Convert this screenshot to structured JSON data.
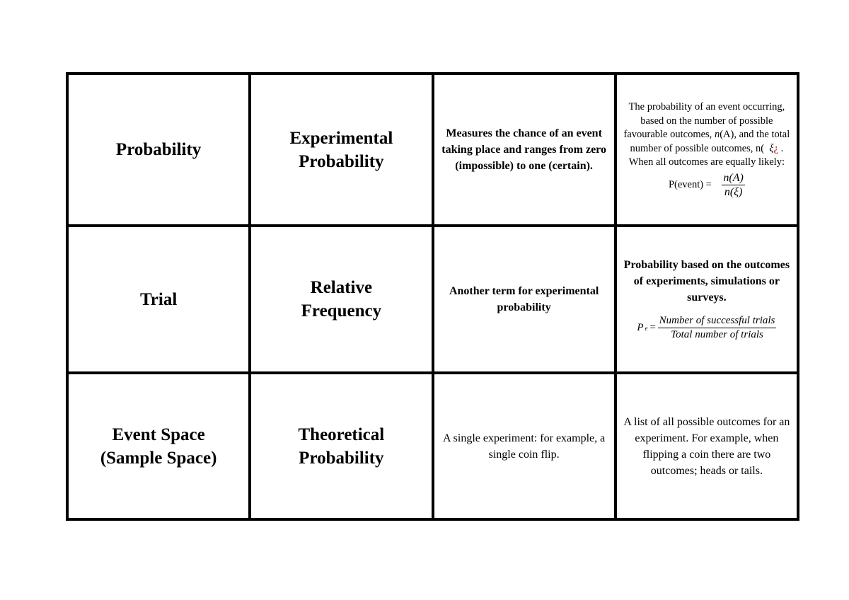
{
  "rows": [
    {
      "c1": "Probability",
      "c2a": "Experimental",
      "c2b": "Probability",
      "c3": "Measures the chance of an event taking place and ranges from zero (impossible) to one (certain).",
      "c4": {
        "line1": "The probability of an event occurring, based on the number of possible favourable outcomes,",
        "nA": "n",
        "nA_rest": "(A), and the total number of possible outcomes, n(",
        "xi": "ξ",
        "glitch": "¿",
        "dot": " .",
        "line2": "When all outcomes are equally likely:",
        "lhs": "P(event) = ",
        "num": "n(A)",
        "den": "n(ξ)"
      }
    },
    {
      "c1": "Trial",
      "c2a": "Relative",
      "c2b": "Frequency",
      "c3": "Another term for experimental probability",
      "c4": {
        "text": "Probability based on the outcomes of experiments, simulations or surveys.",
        "lhs": "P",
        "sub": "e",
        "eq": "=",
        "num": "Number of successful trials",
        "den": "Total number of trials"
      }
    },
    {
      "c1a": "Event Space",
      "c1b": "(Sample Space)",
      "c2a": "Theoretical",
      "c2b": "Probability",
      "c3": "A single experiment: for example, a single coin flip.",
      "c4": "A list of all possible outcomes for an experiment. For example, when flipping a coin there are two outcomes; heads or tails."
    }
  ]
}
